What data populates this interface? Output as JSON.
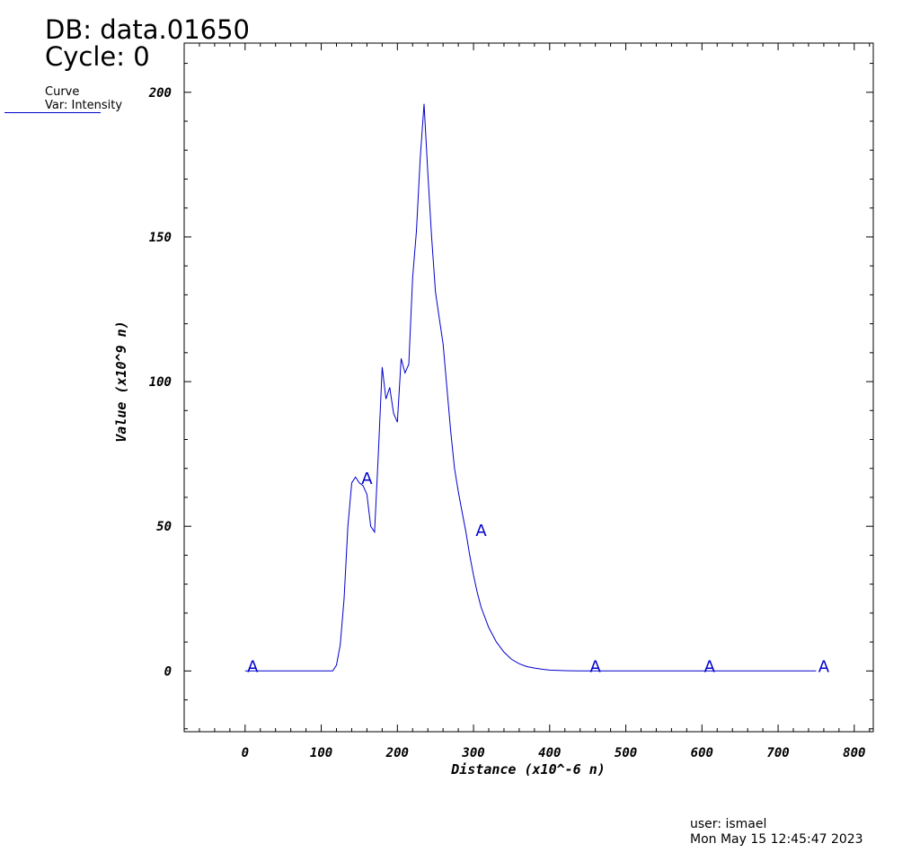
{
  "header": {
    "db": "DB: data.01650",
    "cycle": "Cycle: 0"
  },
  "legend": {
    "title": "Curve",
    "var": "Var: Intensity",
    "color": "#0000cc"
  },
  "footer": {
    "user": "user: ismael",
    "date": "Mon May 15 12:45:47 2023"
  },
  "chart_data": {
    "type": "line",
    "xlabel": "Distance (x10^-6 n)",
    "ylabel": "Value (x10^9 n)",
    "xlim": [
      -80,
      825
    ],
    "ylim": [
      -21,
      217
    ],
    "xticks": [
      0,
      100,
      200,
      300,
      400,
      500,
      600,
      700,
      800
    ],
    "xtick_labels": [
      "0",
      "100",
      "200",
      "300",
      "400",
      "500",
      "600",
      "700",
      "800"
    ],
    "yticks": [
      0,
      50,
      100,
      150,
      200
    ],
    "ytick_labels": [
      "0",
      "50",
      "100",
      "150",
      "200"
    ],
    "series": [
      {
        "color": "#0000cc",
        "x": [
          0,
          20,
          40,
          60,
          80,
          100,
          115,
          120,
          125,
          130,
          135,
          140,
          145,
          150,
          155,
          160,
          165,
          170,
          175,
          180,
          185,
          190,
          195,
          200,
          205,
          210,
          215,
          220,
          225,
          230,
          235,
          240,
          245,
          250,
          255,
          260,
          265,
          270,
          275,
          280,
          285,
          290,
          295,
          300,
          305,
          310,
          320,
          330,
          340,
          350,
          360,
          370,
          380,
          390,
          400,
          420,
          440,
          460,
          480,
          500,
          550,
          600,
          650,
          700,
          750
        ],
        "y": [
          0,
          0,
          0,
          0,
          0,
          0,
          0,
          2,
          9,
          25,
          50,
          65,
          67,
          65,
          64,
          61,
          50,
          48,
          75,
          105,
          94,
          98,
          89,
          86,
          108,
          103,
          106,
          136,
          152,
          177,
          196,
          172,
          150,
          131,
          122,
          113,
          98,
          83,
          70,
          62,
          55,
          48,
          40,
          33,
          27,
          22,
          15,
          10,
          6.5,
          4,
          2.5,
          1.5,
          1,
          0.6,
          0.3,
          0.1,
          0,
          0,
          0,
          0,
          0,
          0,
          0,
          0,
          0
        ]
      }
    ],
    "markers": [
      {
        "label": "A",
        "x": 10,
        "y": 0
      },
      {
        "label": "A",
        "x": 160,
        "y": 65
      },
      {
        "label": "A",
        "x": 310,
        "y": 47
      },
      {
        "label": "A",
        "x": 460,
        "y": 0
      },
      {
        "label": "A",
        "x": 610,
        "y": 0
      },
      {
        "label": "A",
        "x": 760,
        "y": 0
      }
    ]
  }
}
